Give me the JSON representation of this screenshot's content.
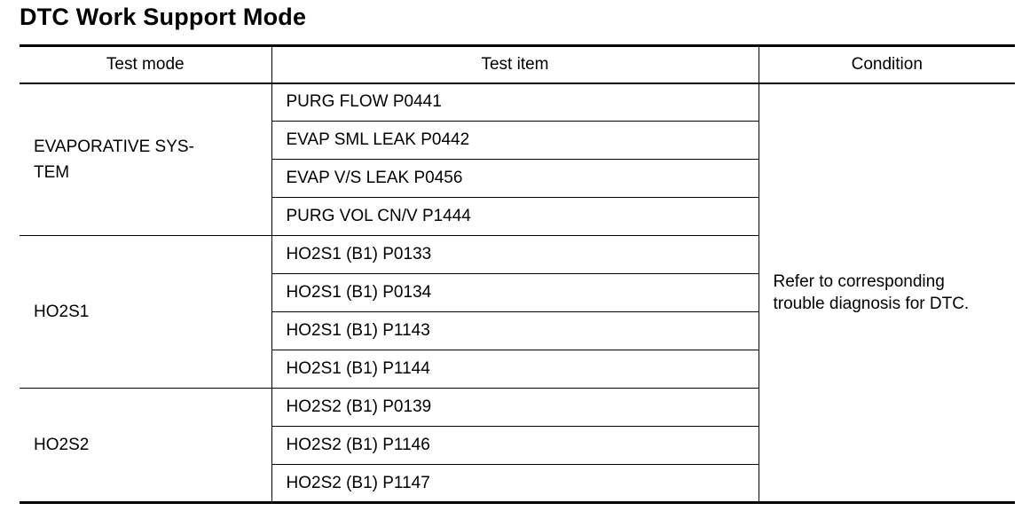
{
  "title": "DTC Work Support Mode",
  "headers": {
    "mode": "Test mode",
    "item": "Test item",
    "condition": "Condition"
  },
  "groups": [
    {
      "mode": "EVAPORATIVE SYS-\nTEM",
      "items": [
        "PURG FLOW P0441",
        "EVAP SML LEAK P0442",
        "EVAP V/S LEAK P0456",
        "PURG VOL CN/V P1444"
      ]
    },
    {
      "mode": "HO2S1",
      "items": [
        "HO2S1 (B1) P0133",
        "HO2S1 (B1) P0134",
        "HO2S1 (B1) P1143",
        "HO2S1 (B1) P1144"
      ]
    },
    {
      "mode": "HO2S2",
      "items": [
        "HO2S2 (B1) P0139",
        "HO2S2 (B1) P1146",
        "HO2S2 (B1) P1147"
      ]
    }
  ],
  "condition": "Refer to corresponding\ntrouble diagnosis for DTC."
}
